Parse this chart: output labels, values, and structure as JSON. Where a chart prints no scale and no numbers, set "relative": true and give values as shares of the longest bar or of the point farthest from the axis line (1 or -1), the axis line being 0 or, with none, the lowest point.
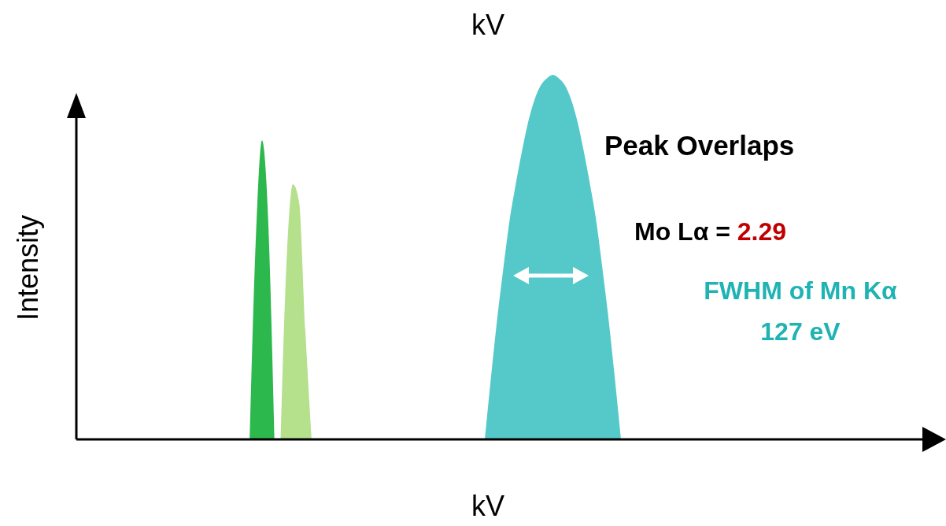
{
  "chart_data": {
    "type": "area",
    "relative": true,
    "title": "kV",
    "xlabel": "kV",
    "ylabel": "Intensity",
    "categories": [
      null,
      null,
      null,
      null,
      null,
      null,
      null,
      null,
      null,
      null,
      null,
      null,
      null,
      null,
      null,
      null,
      null,
      null,
      null,
      null,
      null,
      null,
      null,
      null,
      null,
      null,
      null,
      null,
      null,
      null,
      null,
      null,
      null,
      null,
      null,
      null,
      null,
      null,
      null,
      null,
      null,
      null,
      null,
      null,
      null,
      null,
      null,
      null,
      null,
      null,
      null,
      null,
      null,
      null,
      null,
      null,
      null,
      null,
      null,
      null,
      null,
      null,
      null,
      null,
      null,
      null,
      null,
      null,
      null,
      null,
      null,
      null,
      null,
      null,
      null,
      null,
      null,
      null,
      null,
      null,
      null,
      null,
      null,
      null,
      null,
      null,
      null,
      null,
      null,
      null,
      null,
      null,
      null,
      null,
      null,
      null,
      null,
      null,
      null,
      null,
      null,
      null,
      null,
      null,
      null,
      null,
      null,
      null,
      null,
      null,
      null,
      null,
      null,
      null,
      null,
      null,
      null,
      null,
      null,
      null,
      null,
      null,
      null,
      null,
      null,
      null,
      null,
      null,
      null,
      null,
      null,
      null,
      null,
      null,
      null,
      null,
      null,
      null,
      null,
      null
    ],
    "series": [
      {
        "color": "#2db84d",
        "values": [
          null,
          null,
          null,
          null,
          null,
          null,
          null,
          null,
          null,
          null,
          null,
          null,
          null,
          null,
          null,
          null,
          null,
          null,
          null,
          null,
          null,
          null,
          null,
          null,
          null,
          null,
          null,
          null,
          0,
          0.55,
          0.82,
          0.6,
          0,
          null,
          null,
          null,
          null,
          null,
          null,
          null,
          null,
          null,
          null,
          null,
          null,
          null,
          null,
          null,
          null,
          null,
          null,
          null,
          null,
          null,
          null,
          null,
          null,
          null,
          null,
          null,
          null,
          null,
          null,
          null,
          null,
          null,
          null,
          null,
          null,
          null,
          null,
          null,
          null,
          null,
          null,
          null,
          null,
          null,
          null,
          null,
          null,
          null,
          null,
          null,
          null,
          null,
          null,
          null,
          null,
          null,
          null,
          null,
          null,
          null,
          null,
          null,
          null,
          null,
          null,
          null,
          null,
          null,
          null,
          null,
          null,
          null,
          null,
          null,
          null,
          null,
          null,
          null,
          null,
          null,
          null,
          null,
          null,
          null,
          null,
          null,
          null,
          null,
          null,
          null,
          null,
          null,
          null,
          null,
          null,
          null,
          null,
          null,
          null,
          null,
          null,
          null,
          null,
          null,
          null,
          null
        ]
      },
      {
        "color": "#b5e08c",
        "values": [
          null,
          null,
          null,
          null,
          null,
          null,
          null,
          null,
          null,
          null,
          null,
          null,
          null,
          null,
          null,
          null,
          null,
          null,
          null,
          null,
          null,
          null,
          null,
          null,
          null,
          null,
          null,
          null,
          null,
          null,
          null,
          null,
          null,
          0,
          0.5,
          0.7,
          0.65,
          0.3,
          0,
          null,
          null,
          null,
          null,
          null,
          null,
          null,
          null,
          null,
          null,
          null,
          null,
          null,
          null,
          null,
          null,
          null,
          null,
          null,
          null,
          null,
          null,
          null,
          null,
          null,
          null,
          null,
          null,
          null,
          null,
          null,
          null,
          null,
          null,
          null,
          null,
          null,
          null,
          null,
          null,
          null,
          null,
          null,
          null,
          null,
          null,
          null,
          null,
          null,
          null,
          null,
          null,
          null,
          null,
          null,
          null,
          null,
          null,
          null,
          null,
          null,
          null,
          null,
          null,
          null,
          null,
          null,
          null,
          null,
          null,
          null,
          null,
          null,
          null,
          null,
          null,
          null,
          null,
          null,
          null,
          null,
          null,
          null,
          null,
          null,
          null,
          null,
          null,
          null,
          null,
          null,
          null,
          null,
          null,
          null,
          null,
          null,
          null,
          null,
          null,
          null
        ]
      },
      {
        "color": "#55c9c9",
        "values": [
          null,
          null,
          null,
          null,
          null,
          null,
          null,
          null,
          null,
          null,
          null,
          null,
          null,
          null,
          null,
          null,
          null,
          null,
          null,
          null,
          null,
          null,
          null,
          null,
          null,
          null,
          null,
          null,
          null,
          null,
          null,
          null,
          null,
          null,
          null,
          null,
          null,
          null,
          null,
          null,
          null,
          null,
          null,
          null,
          null,
          null,
          null,
          null,
          null,
          null,
          null,
          null,
          null,
          null,
          null,
          null,
          null,
          null,
          null,
          null,
          null,
          null,
          null,
          null,
          null,
          null,
          0,
          0.17,
          0.33,
          0.47,
          0.6,
          0.7,
          0.79,
          0.87,
          0.93,
          0.97,
          0.99,
          1,
          0.99,
          0.97,
          0.93,
          0.87,
          0.79,
          0.7,
          0.6,
          0.47,
          0.33,
          0.17,
          0,
          null,
          null,
          null,
          null,
          null,
          null,
          null,
          null,
          null,
          null,
          null,
          null,
          null,
          null,
          null,
          null,
          null,
          null,
          null,
          null,
          null,
          null,
          null,
          null,
          null,
          null,
          null,
          null,
          null,
          null,
          null,
          null,
          null,
          null,
          null,
          null,
          null,
          null,
          null,
          null,
          null,
          null,
          null,
          null,
          null,
          null,
          null,
          null,
          null,
          null,
          null
        ]
      }
    ],
    "annotations": [
      "Peak Overlaps",
      "Mo Lα = ",
      "2.29",
      "FWHM of Mn Kα",
      "127 eV"
    ]
  }
}
